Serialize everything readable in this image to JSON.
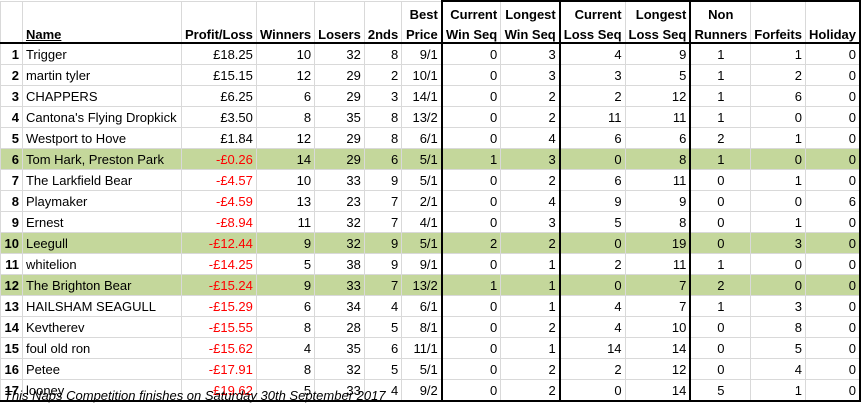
{
  "headers": {
    "name": "Name",
    "profit": "Profit/Loss",
    "winners": "Winners",
    "losers": "Losers",
    "seconds": "2nds",
    "best_price_1": "Best",
    "best_price_2": "Price",
    "cur_win_1": "Current",
    "cur_win_2": "Win Seq",
    "long_win_1": "Longest",
    "long_win_2": "Win Seq",
    "cur_loss_1": "Current",
    "cur_loss_2": "Loss Seq",
    "long_loss_1": "Longest",
    "long_loss_2": "Loss Seq",
    "non_runners_1": "Non",
    "non_runners_2": "Runners",
    "forfeits": "Forfeits",
    "holiday": "Holiday"
  },
  "rows": [
    {
      "rank": "1",
      "name": "Trigger",
      "profit": "£18.25",
      "winners": "10",
      "losers": "32",
      "seconds": "8",
      "best": "9/1",
      "cur_win": "0",
      "long_win": "3",
      "cur_loss": "4",
      "long_loss": "9",
      "non_runners": "1",
      "forfeits": "1",
      "holiday": "0",
      "neg": false,
      "hl": false
    },
    {
      "rank": "2",
      "name": "martin tyler",
      "profit": "£15.15",
      "winners": "12",
      "losers": "29",
      "seconds": "2",
      "best": "10/1",
      "cur_win": "0",
      "long_win": "3",
      "cur_loss": "3",
      "long_loss": "5",
      "non_runners": "1",
      "forfeits": "2",
      "holiday": "0",
      "neg": false,
      "hl": false
    },
    {
      "rank": "3",
      "name": "CHAPPERS",
      "profit": "£6.25",
      "winners": "6",
      "losers": "29",
      "seconds": "3",
      "best": "14/1",
      "cur_win": "0",
      "long_win": "2",
      "cur_loss": "2",
      "long_loss": "12",
      "non_runners": "1",
      "forfeits": "6",
      "holiday": "0",
      "neg": false,
      "hl": false
    },
    {
      "rank": "4",
      "name": "Cantona's Flying Dropkick",
      "profit": "£3.50",
      "winners": "8",
      "losers": "35",
      "seconds": "8",
      "best": "13/2",
      "cur_win": "0",
      "long_win": "2",
      "cur_loss": "11",
      "long_loss": "11",
      "non_runners": "1",
      "forfeits": "0",
      "holiday": "0",
      "neg": false,
      "hl": false
    },
    {
      "rank": "5",
      "name": "Westport to Hove",
      "profit": "£1.84",
      "winners": "12",
      "losers": "29",
      "seconds": "8",
      "best": "6/1",
      "cur_win": "0",
      "long_win": "4",
      "cur_loss": "6",
      "long_loss": "6",
      "non_runners": "2",
      "forfeits": "1",
      "holiday": "0",
      "neg": false,
      "hl": false
    },
    {
      "rank": "6",
      "name": "Tom Hark, Preston Park",
      "profit": "-£0.26",
      "winners": "14",
      "losers": "29",
      "seconds": "6",
      "best": "5/1",
      "cur_win": "1",
      "long_win": "3",
      "cur_loss": "0",
      "long_loss": "8",
      "non_runners": "1",
      "forfeits": "0",
      "holiday": "0",
      "neg": true,
      "hl": true
    },
    {
      "rank": "7",
      "name": "The Larkfield Bear",
      "profit": "-£4.57",
      "winners": "10",
      "losers": "33",
      "seconds": "9",
      "best": "5/1",
      "cur_win": "0",
      "long_win": "2",
      "cur_loss": "6",
      "long_loss": "11",
      "non_runners": "0",
      "forfeits": "1",
      "holiday": "0",
      "neg": true,
      "hl": false
    },
    {
      "rank": "8",
      "name": "Playmaker",
      "profit": "-£4.59",
      "winners": "13",
      "losers": "23",
      "seconds": "7",
      "best": "2/1",
      "cur_win": "0",
      "long_win": "4",
      "cur_loss": "9",
      "long_loss": "9",
      "non_runners": "0",
      "forfeits": "0",
      "holiday": "6",
      "neg": true,
      "hl": false
    },
    {
      "rank": "9",
      "name": "Ernest",
      "profit": "-£8.94",
      "winners": "11",
      "losers": "32",
      "seconds": "7",
      "best": "4/1",
      "cur_win": "0",
      "long_win": "3",
      "cur_loss": "5",
      "long_loss": "8",
      "non_runners": "0",
      "forfeits": "1",
      "holiday": "0",
      "neg": true,
      "hl": false
    },
    {
      "rank": "10",
      "name": "Leegull",
      "profit": "-£12.44",
      "winners": "9",
      "losers": "32",
      "seconds": "9",
      "best": "5/1",
      "cur_win": "2",
      "long_win": "2",
      "cur_loss": "0",
      "long_loss": "19",
      "non_runners": "0",
      "forfeits": "3",
      "holiday": "0",
      "neg": true,
      "hl": true
    },
    {
      "rank": "11",
      "name": "whitelion",
      "profit": "-£14.25",
      "winners": "5",
      "losers": "38",
      "seconds": "9",
      "best": "9/1",
      "cur_win": "0",
      "long_win": "1",
      "cur_loss": "2",
      "long_loss": "11",
      "non_runners": "1",
      "forfeits": "0",
      "holiday": "0",
      "neg": true,
      "hl": false
    },
    {
      "rank": "12",
      "name": "The Brighton Bear",
      "profit": "-£15.24",
      "winners": "9",
      "losers": "33",
      "seconds": "7",
      "best": "13/2",
      "cur_win": "1",
      "long_win": "1",
      "cur_loss": "0",
      "long_loss": "7",
      "non_runners": "2",
      "forfeits": "0",
      "holiday": "0",
      "neg": true,
      "hl": true
    },
    {
      "rank": "13",
      "name": "HAILSHAM SEAGULL",
      "profit": "-£15.29",
      "winners": "6",
      "losers": "34",
      "seconds": "4",
      "best": "6/1",
      "cur_win": "0",
      "long_win": "1",
      "cur_loss": "4",
      "long_loss": "7",
      "non_runners": "1",
      "forfeits": "3",
      "holiday": "0",
      "neg": true,
      "hl": false
    },
    {
      "rank": "14",
      "name": "Kevtherev",
      "profit": "-£15.55",
      "winners": "8",
      "losers": "28",
      "seconds": "5",
      "best": "8/1",
      "cur_win": "0",
      "long_win": "2",
      "cur_loss": "4",
      "long_loss": "10",
      "non_runners": "0",
      "forfeits": "8",
      "holiday": "0",
      "neg": true,
      "hl": false
    },
    {
      "rank": "15",
      "name": "foul old ron",
      "profit": "-£15.62",
      "winners": "4",
      "losers": "35",
      "seconds": "6",
      "best": "11/1",
      "cur_win": "0",
      "long_win": "1",
      "cur_loss": "14",
      "long_loss": "14",
      "non_runners": "0",
      "forfeits": "5",
      "holiday": "0",
      "neg": true,
      "hl": false
    },
    {
      "rank": "16",
      "name": "Petee",
      "profit": "-£17.91",
      "winners": "8",
      "losers": "32",
      "seconds": "5",
      "best": "5/1",
      "cur_win": "0",
      "long_win": "2",
      "cur_loss": "2",
      "long_loss": "12",
      "non_runners": "0",
      "forfeits": "4",
      "holiday": "0",
      "neg": true,
      "hl": false
    },
    {
      "rank": "17",
      "name": "looney",
      "profit": "-£19.62",
      "winners": "5",
      "losers": "33",
      "seconds": "4",
      "best": "9/2",
      "cur_win": "0",
      "long_win": "2",
      "cur_loss": "0",
      "long_loss": "14",
      "non_runners": "5",
      "forfeits": "1",
      "holiday": "0",
      "neg": true,
      "hl": false
    }
  ],
  "footer": "This Naps Competition finishes on Saturday 30th September 2017",
  "colors": {
    "highlight": "#c4d79b",
    "negative": "#ff0000"
  }
}
